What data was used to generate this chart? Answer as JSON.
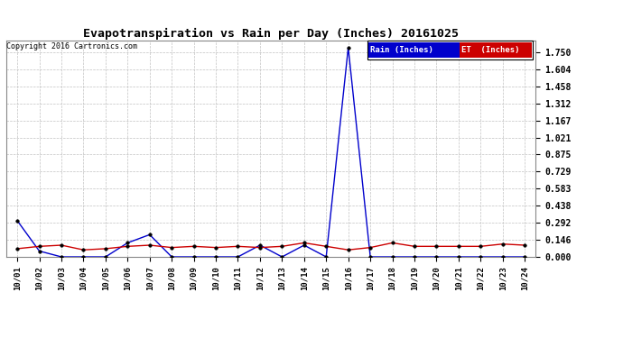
{
  "title": "Evapotranspiration vs Rain per Day (Inches) 20161025",
  "copyright": "Copyright 2016 Cartronics.com",
  "background_color": "#ffffff",
  "plot_bg_color": "#ffffff",
  "x_labels": [
    "10/01",
    "10/02",
    "10/03",
    "10/04",
    "10/05",
    "10/06",
    "10/07",
    "10/08",
    "10/09",
    "10/10",
    "10/11",
    "10/12",
    "10/13",
    "10/14",
    "10/15",
    "10/16",
    "10/17",
    "10/18",
    "10/19",
    "10/20",
    "10/21",
    "10/22",
    "10/23",
    "10/24"
  ],
  "rain_values": [
    0.31,
    0.05,
    0.0,
    0.0,
    0.0,
    0.12,
    0.19,
    0.0,
    0.0,
    0.0,
    0.0,
    0.1,
    0.0,
    0.1,
    0.0,
    1.79,
    0.0,
    0.0,
    0.0,
    0.0,
    0.0,
    0.0,
    0.0,
    0.0
  ],
  "et_values": [
    0.07,
    0.09,
    0.1,
    0.06,
    0.07,
    0.09,
    0.1,
    0.08,
    0.09,
    0.08,
    0.09,
    0.08,
    0.09,
    0.12,
    0.09,
    0.06,
    0.08,
    0.12,
    0.09,
    0.09,
    0.09,
    0.09,
    0.11,
    0.1
  ],
  "rain_color": "#0000cc",
  "et_color": "#cc0000",
  "yticks": [
    0.0,
    0.146,
    0.292,
    0.438,
    0.583,
    0.729,
    0.875,
    1.021,
    1.167,
    1.312,
    1.458,
    1.604,
    1.75
  ],
  "ymax": 1.85,
  "legend_rain_label": "Rain (Inches)",
  "legend_et_label": "ET  (Inches)"
}
